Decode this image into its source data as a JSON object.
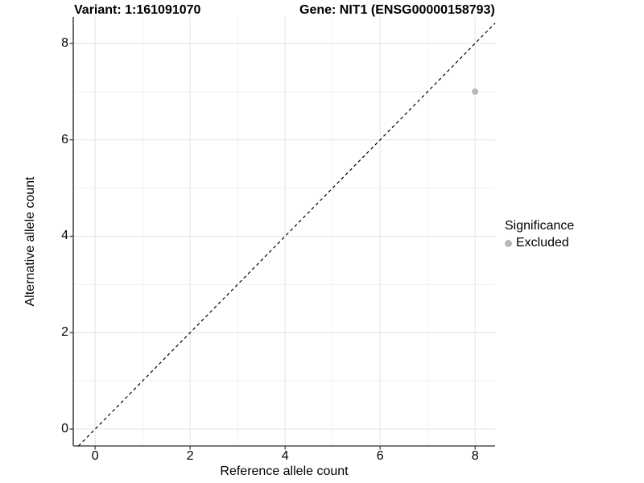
{
  "figure": {
    "title_left": "Variant: 1:161091070",
    "title_right": "Gene: NIT1 (ENSG00000158793)"
  },
  "chart_data": {
    "type": "scatter",
    "title": "Variant: 1:161091070  /  Gene: NIT1 (ENSG00000158793)",
    "xlabel": "Reference allele count",
    "ylabel": "Alternative allele count",
    "xlim": [
      -0.46,
      8.42
    ],
    "ylim": [
      -0.35,
      8.55
    ],
    "major_ticks": [
      0,
      2,
      4,
      6,
      8
    ],
    "minor_gridlines": [
      1,
      3,
      5,
      7
    ],
    "grid": true,
    "points": [
      {
        "x": 8,
        "y": 7,
        "series": "Excluded"
      }
    ],
    "reference_line": {
      "kind": "identity y=x",
      "style": "dashed",
      "color": "#000000"
    },
    "legend": {
      "title": "Significance",
      "position": "right",
      "entries": [
        {
          "label": "Excluded",
          "color": "#b8b8b8"
        }
      ]
    },
    "colors": {
      "point": "#b8b8b8",
      "grid_major": "#e3e3e3",
      "grid_minor": "#f1f1f1",
      "axis_line_left": "#1f1f1f",
      "axis_line_bottom": "#7a7a7a",
      "tick_mark": "#333333"
    }
  }
}
